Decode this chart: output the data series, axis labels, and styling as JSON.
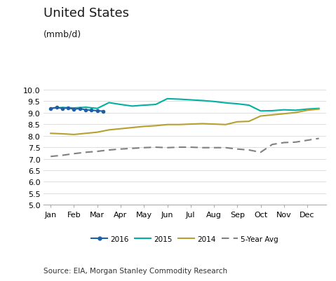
{
  "title": "United States",
  "subtitle": "(mmb/d)",
  "source": "Source: EIA, Morgan Stanley Commodity Research",
  "xlabels": [
    "Jan",
    "Feb",
    "Mar",
    "Apr",
    "May",
    "Jun",
    "Jul",
    "Aug",
    "Sep",
    "Oct",
    "Nov",
    "Dec"
  ],
  "ylim": [
    5.0,
    10.0
  ],
  "yticks": [
    5.0,
    5.5,
    6.0,
    6.5,
    7.0,
    7.5,
    8.0,
    8.5,
    9.0,
    9.5,
    10.0
  ],
  "series_2016": {
    "x": [
      0,
      0.25,
      0.5,
      0.75,
      1.0,
      1.25,
      1.5,
      1.75,
      2.0,
      2.25
    ],
    "y": [
      9.18,
      9.22,
      9.18,
      9.2,
      9.15,
      9.17,
      9.12,
      9.1,
      9.08,
      9.06
    ],
    "color": "#1f5fa6",
    "label": "2016",
    "marker": "o",
    "markersize": 3.0,
    "linewidth": 1.5
  },
  "series_2015": {
    "x": [
      0,
      0.5,
      1.0,
      1.5,
      2.0,
      2.5,
      3.0,
      3.5,
      4.0,
      4.5,
      5.0,
      5.5,
      6.0,
      6.5,
      7.0,
      7.5,
      8.0,
      8.5,
      9.0,
      9.5,
      10.0,
      10.5,
      11.0,
      11.5
    ],
    "y": [
      9.18,
      9.22,
      9.2,
      9.23,
      9.18,
      9.43,
      9.35,
      9.28,
      9.32,
      9.35,
      9.6,
      9.58,
      9.55,
      9.52,
      9.48,
      9.42,
      9.38,
      9.32,
      9.07,
      9.08,
      9.12,
      9.1,
      9.15,
      9.18
    ],
    "color": "#00b0a0",
    "label": "2015",
    "linewidth": 1.5
  },
  "series_2014": {
    "x": [
      0,
      0.5,
      1.0,
      1.5,
      2.0,
      2.5,
      3.0,
      3.5,
      4.0,
      4.5,
      5.0,
      5.5,
      6.0,
      6.5,
      7.0,
      7.5,
      8.0,
      8.5,
      9.0,
      9.5,
      10.0,
      10.5,
      11.0,
      11.5
    ],
    "y": [
      8.1,
      8.08,
      8.05,
      8.1,
      8.15,
      8.25,
      8.3,
      8.35,
      8.4,
      8.43,
      8.48,
      8.48,
      8.5,
      8.52,
      8.5,
      8.48,
      8.6,
      8.62,
      8.85,
      8.9,
      8.95,
      9.0,
      9.1,
      9.15
    ],
    "color": "#b5a030",
    "label": "2014",
    "linewidth": 1.5
  },
  "series_5yr": {
    "x": [
      0,
      0.5,
      1.0,
      1.5,
      2.0,
      2.5,
      3.0,
      3.5,
      4.0,
      4.5,
      5.0,
      5.5,
      6.0,
      6.5,
      7.0,
      7.5,
      8.0,
      8.5,
      9.0,
      9.5,
      10.0,
      10.5,
      11.0,
      11.5
    ],
    "y": [
      7.1,
      7.15,
      7.22,
      7.28,
      7.32,
      7.38,
      7.42,
      7.45,
      7.48,
      7.5,
      7.48,
      7.5,
      7.5,
      7.48,
      7.48,
      7.48,
      7.42,
      7.38,
      7.28,
      7.62,
      7.7,
      7.72,
      7.8,
      7.88
    ],
    "color": "#808080",
    "label": "5-Year Avg",
    "linewidth": 1.5,
    "linestyle": "--"
  },
  "background_color": "#ffffff",
  "plot_bg_color": "#ffffff",
  "grid_color": "#dddddd",
  "title_fontsize": 13,
  "subtitle_fontsize": 9,
  "tick_fontsize": 8,
  "legend_fontsize": 7.5,
  "source_fontsize": 7.5
}
